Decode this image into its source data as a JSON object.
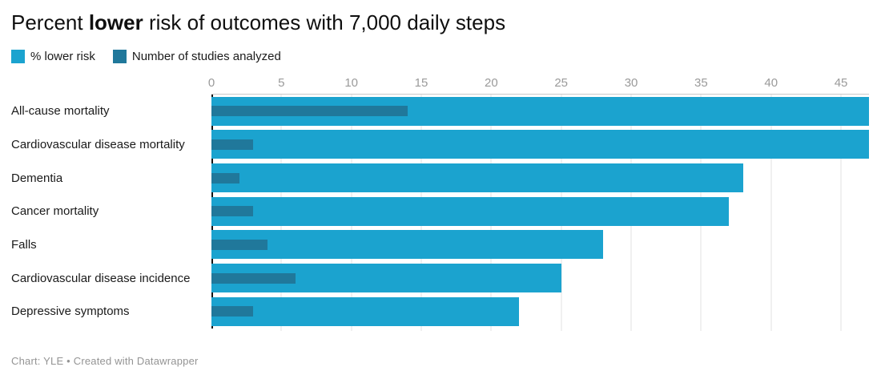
{
  "title": {
    "prefix": "Percent ",
    "bold": "lower",
    "suffix": " risk of outcomes with 7,000 daily steps"
  },
  "legend": {
    "items": [
      {
        "label": "% lower risk",
        "color": "#1ba3cf"
      },
      {
        "label": "Number of studies analyzed",
        "color": "#20789b"
      }
    ]
  },
  "chart_data": {
    "type": "bar",
    "orientation": "horizontal",
    "title": "Percent lower risk of outcomes with 7,000 daily steps",
    "categories": [
      "All-cause mortality",
      "Cardiovascular disease mortality",
      "Dementia",
      "Cancer mortality",
      "Falls",
      "Cardiovascular disease incidence",
      "Depressive symptoms"
    ],
    "series": [
      {
        "name": "% lower risk",
        "color": "#1ba3cf",
        "values": [
          47,
          47,
          38,
          37,
          28,
          25,
          22
        ]
      },
      {
        "name": "Number of studies analyzed",
        "color": "#20789b",
        "values": [
          14,
          3,
          2,
          3,
          4,
          6,
          3
        ]
      }
    ],
    "xlim": [
      0,
      47
    ],
    "ticks": [
      0,
      5,
      10,
      15,
      20,
      25,
      30,
      35,
      40,
      45
    ],
    "grid": "vertical",
    "legend_position": "top",
    "xlabel": "",
    "ylabel": ""
  },
  "footer": {
    "credit": "Chart: YLE • Created with Datawrapper"
  },
  "colors": {
    "bar_light": "#1ba3cf",
    "bar_dark": "#20789b",
    "tick_label": "#9a9a9a",
    "gridline": "#e2e2e2",
    "axis_line": "#c9c9c9",
    "zero_line": "#141414",
    "footer_text": "#949494"
  }
}
